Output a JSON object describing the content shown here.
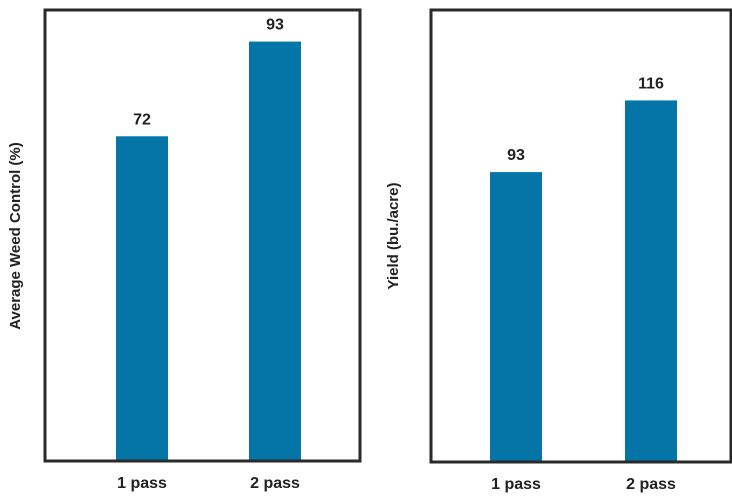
{
  "chart_data": [
    {
      "type": "bar",
      "categories": [
        "1 pass",
        "2 pass"
      ],
      "values": [
        72,
        93
      ],
      "value_labels": [
        "72",
        "93"
      ],
      "ylabel": "Average Weed Control (%)",
      "xlabel": "",
      "title": "",
      "ylim": [
        0,
        100
      ],
      "grid": false,
      "colors": {
        "bar": "#0575a8",
        "frame": "#2a2a2a"
      }
    },
    {
      "type": "bar",
      "categories": [
        "1 pass",
        "2 pass"
      ],
      "values": [
        93,
        116
      ],
      "value_labels": [
        "93",
        "116"
      ],
      "ylabel": "Yield (bu./acre)",
      "xlabel": "",
      "title": "",
      "ylim": [
        0,
        145
      ],
      "grid": false,
      "colors": {
        "bar": "#0575a8",
        "frame": "#2a2a2a"
      }
    }
  ]
}
